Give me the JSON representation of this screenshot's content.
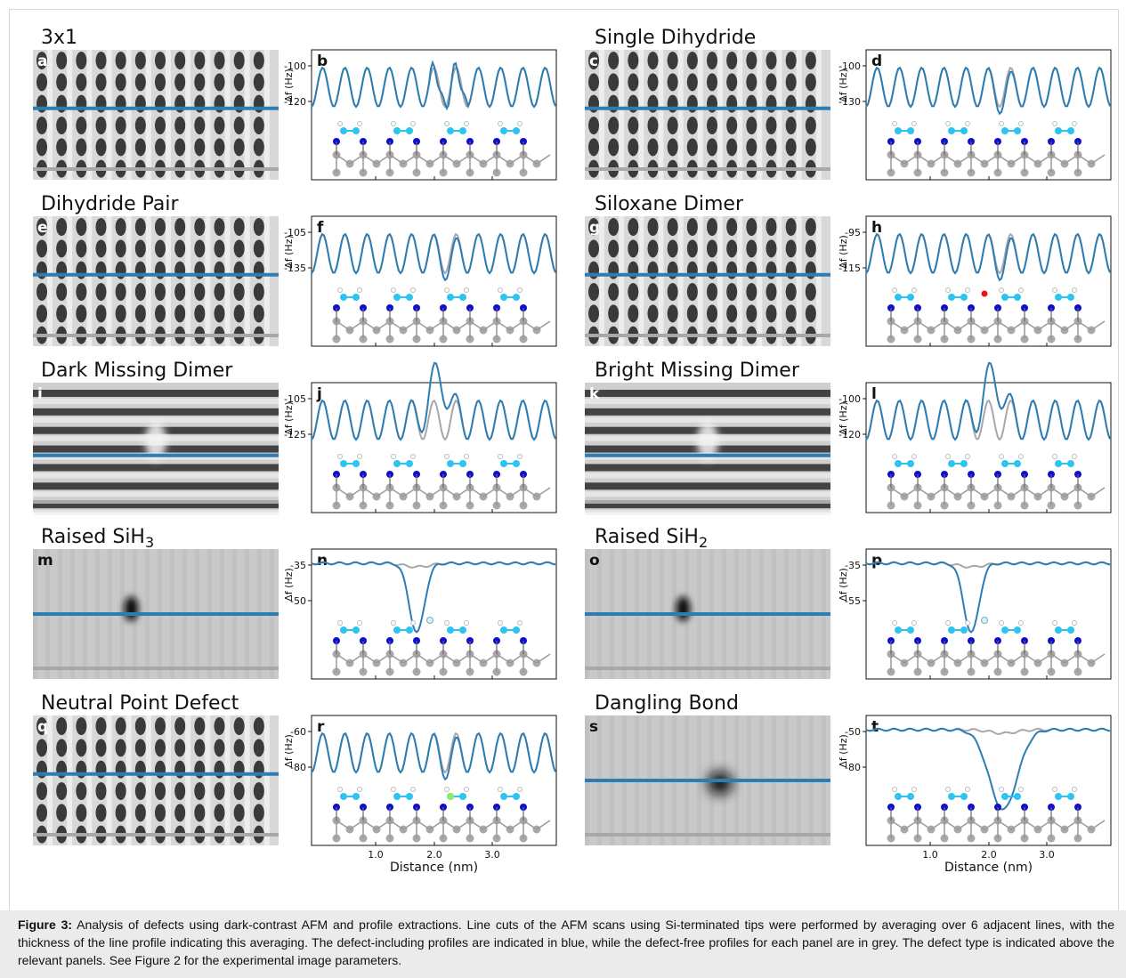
{
  "figure_label": "Figure 3:",
  "caption": "Analysis of defects using dark-contrast AFM and profile extractions. Line cuts of the AFM scans using Si-terminated tips were performed by averaging over 6 adjacent lines, with the thickness of the line profile indicating this averaging. The defect-including profiles are indicated in blue, while the defect-free profiles for each panel are in grey. The defect type is indicated above the relevant panels. See Figure 2 for the experimental image parameters.",
  "y_axis_label": "Δf (Hz)",
  "x_axis_label": "Distance (nm)",
  "x_ticks": [
    "1.0",
    "2.0",
    "3.0"
  ],
  "colors": {
    "defect_profile": "#2d7db3",
    "reference_profile": "#a8a8a8",
    "si_top": "#2ec4f0",
    "si_dimer": "#1010cc",
    "si_bulk": "#a9a9a9",
    "oxygen": "#ee1111",
    "neutral_defect": "#88ee66"
  },
  "panels": [
    {
      "title": "3x1",
      "afm_letter": "a",
      "plot_letter": "b",
      "ytick_top": "-100",
      "ytick_bottom": "-120",
      "afm_style": "stripes",
      "defect": "none"
    },
    {
      "title": "Single Dihydride",
      "afm_letter": "c",
      "plot_letter": "d",
      "ytick_top": "-100",
      "ytick_bottom": "-130",
      "afm_style": "stripes",
      "defect": "single"
    },
    {
      "title": "Dihydride Pair",
      "afm_letter": "e",
      "plot_letter": "f",
      "ytick_top": "-105",
      "ytick_bottom": "-135",
      "afm_style": "stripes",
      "defect": "pair"
    },
    {
      "title": "Siloxane Dimer",
      "afm_letter": "g",
      "plot_letter": "h",
      "ytick_top": "-95",
      "ytick_bottom": "-115",
      "afm_style": "stripes",
      "defect": "siloxane"
    },
    {
      "title": "Dark Missing Dimer",
      "afm_letter": "i",
      "plot_letter": "j",
      "ytick_top": "-105",
      "ytick_bottom": "-125",
      "afm_style": "rows",
      "defect": "bump"
    },
    {
      "title": "Bright Missing Dimer",
      "afm_letter": "k",
      "plot_letter": "l",
      "ytick_top": "-100",
      "ytick_bottom": "-120",
      "afm_style": "rows",
      "defect": "bump"
    },
    {
      "title": "Raised SiH",
      "title_sub": "3",
      "afm_letter": "m",
      "plot_letter": "n",
      "ytick_top": "-35",
      "ytick_bottom": "-50",
      "afm_style": "flat",
      "defect": "dip"
    },
    {
      "title": "Raised SiH",
      "title_sub": "2",
      "afm_letter": "o",
      "plot_letter": "p",
      "ytick_top": "-35",
      "ytick_bottom": "-55",
      "afm_style": "flat",
      "defect": "dip"
    },
    {
      "title": "Neutral Point Defect",
      "afm_letter": "q",
      "plot_letter": "r",
      "ytick_top": "-60",
      "ytick_bottom": "-80",
      "afm_style": "stripes",
      "defect": "neutral"
    },
    {
      "title": "Dangling Bond",
      "afm_letter": "s",
      "plot_letter": "t",
      "ytick_top": "-50",
      "ytick_bottom": "-80",
      "afm_style": "flat",
      "defect": "dip_wide"
    }
  ]
}
